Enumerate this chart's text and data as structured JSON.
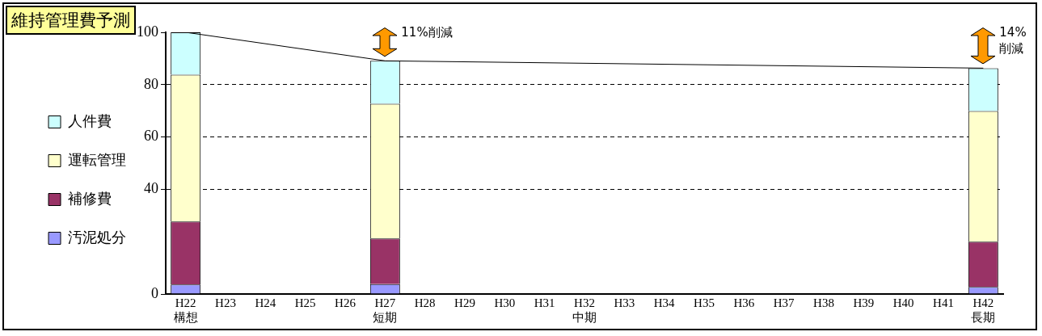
{
  "chart_data": {
    "type": "bar",
    "title": "維持管理費予測",
    "stacked": true,
    "categories": [
      "H22\n構想",
      "H23",
      "H24",
      "H25",
      "H26",
      "H27\n短期",
      "H28",
      "H29",
      "H30",
      "H31",
      "H32\n中期",
      "H33",
      "H34",
      "H35",
      "H36",
      "H37",
      "H38",
      "H39",
      "H40",
      "H41",
      "H42\n長期"
    ],
    "series": [
      {
        "name": "汚泥処分",
        "color": "#9999ff",
        "values": [
          3.6,
          null,
          null,
          null,
          null,
          3.8,
          null,
          null,
          null,
          null,
          null,
          null,
          null,
          null,
          null,
          null,
          null,
          null,
          null,
          null,
          2.7
        ]
      },
      {
        "name": "補修費",
        "color": "#993366",
        "values": [
          24.1,
          null,
          null,
          null,
          null,
          17.4,
          null,
          null,
          null,
          null,
          null,
          null,
          null,
          null,
          null,
          null,
          null,
          null,
          null,
          null,
          17.3
        ]
      },
      {
        "name": "運転管理",
        "color": "#ffffcc",
        "values": [
          56.1,
          null,
          null,
          null,
          null,
          51.5,
          null,
          null,
          null,
          null,
          null,
          null,
          null,
          null,
          null,
          null,
          null,
          null,
          null,
          null,
          49.9
        ]
      },
      {
        "name": "人件費",
        "color": "#ccffff",
        "values": [
          16.2,
          null,
          null,
          null,
          null,
          16.4,
          null,
          null,
          null,
          null,
          null,
          null,
          null,
          null,
          null,
          null,
          null,
          null,
          null,
          null,
          16.4
        ]
      },
      {
        "type": "line",
        "color": "#000000",
        "values": [
          100,
          null,
          null,
          null,
          null,
          89.1,
          null,
          null,
          null,
          null,
          null,
          null,
          null,
          null,
          null,
          null,
          null,
          null,
          null,
          null,
          86.3
        ]
      }
    ],
    "ylim": [
      0,
      100
    ],
    "yticks": [
      0,
      40,
      60,
      80,
      100
    ],
    "grid": "y",
    "legend": "left",
    "marker": "none",
    "annotations": [
      "11%削減",
      "14%削減"
    ]
  }
}
